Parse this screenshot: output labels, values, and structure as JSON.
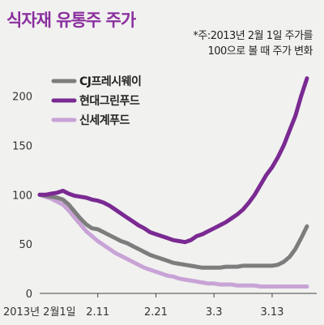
{
  "chart_data": {
    "type": "line",
    "title": "식자재 유통주 주가",
    "note_lines": [
      "*주:2013년 2월 1일 주가를",
      "100으로 볼 때 주가 변화"
    ],
    "x_tick_labels": [
      "2013년 2월1일",
      "2.11",
      "2.21",
      "3.3",
      "3.13"
    ],
    "x_tick_days": [
      0,
      10,
      20,
      30,
      40
    ],
    "y_ticks": [
      0,
      50,
      100,
      150,
      200
    ],
    "ylim": [
      0,
      230
    ],
    "grid": false,
    "legend_position": "top-left",
    "x_days": [
      0,
      1,
      2,
      3,
      4,
      5,
      6,
      7,
      8,
      9,
      10,
      11,
      12,
      13,
      14,
      15,
      16,
      17,
      18,
      19,
      20,
      21,
      22,
      23,
      24,
      25,
      26,
      27,
      28,
      29,
      30,
      31,
      32,
      33,
      34,
      35,
      36,
      37,
      38,
      39,
      40,
      41,
      42,
      43,
      44,
      45,
      46
    ],
    "series": [
      {
        "name": "CJ프레시웨이",
        "color": "#7d7d7d",
        "values": [
          100,
          99,
          98,
          97,
          95,
          90,
          83,
          76,
          70,
          66,
          65,
          62,
          59,
          56,
          53,
          51,
          48,
          45,
          42,
          39,
          37,
          35,
          33,
          31,
          30,
          29,
          28,
          27,
          26,
          26,
          26,
          26,
          27,
          27,
          27,
          28,
          28,
          28,
          28,
          28,
          28,
          29,
          32,
          37,
          45,
          56,
          68
        ]
      },
      {
        "name": "현대그린푸드",
        "color": "#7a2a92",
        "values": [
          100,
          100,
          101,
          102,
          104,
          101,
          99,
          98,
          97,
          95,
          94,
          92,
          89,
          85,
          81,
          77,
          73,
          69,
          66,
          62,
          60,
          58,
          56,
          54,
          53,
          52,
          54,
          58,
          60,
          63,
          66,
          69,
          72,
          76,
          80,
          85,
          92,
          100,
          110,
          120,
          128,
          138,
          150,
          165,
          180,
          200,
          218
        ]
      },
      {
        "name": "신세계푸드",
        "color": "#c8a3d6",
        "values": [
          100,
          98,
          96,
          93,
          90,
          84,
          77,
          70,
          63,
          58,
          53,
          49,
          45,
          41,
          38,
          35,
          32,
          29,
          26,
          24,
          22,
          20,
          18,
          17,
          15,
          14,
          13,
          12,
          11,
          10,
          10,
          9,
          9,
          9,
          8,
          8,
          8,
          8,
          7,
          7,
          7,
          7,
          7,
          7,
          7,
          7,
          7
        ]
      }
    ]
  }
}
